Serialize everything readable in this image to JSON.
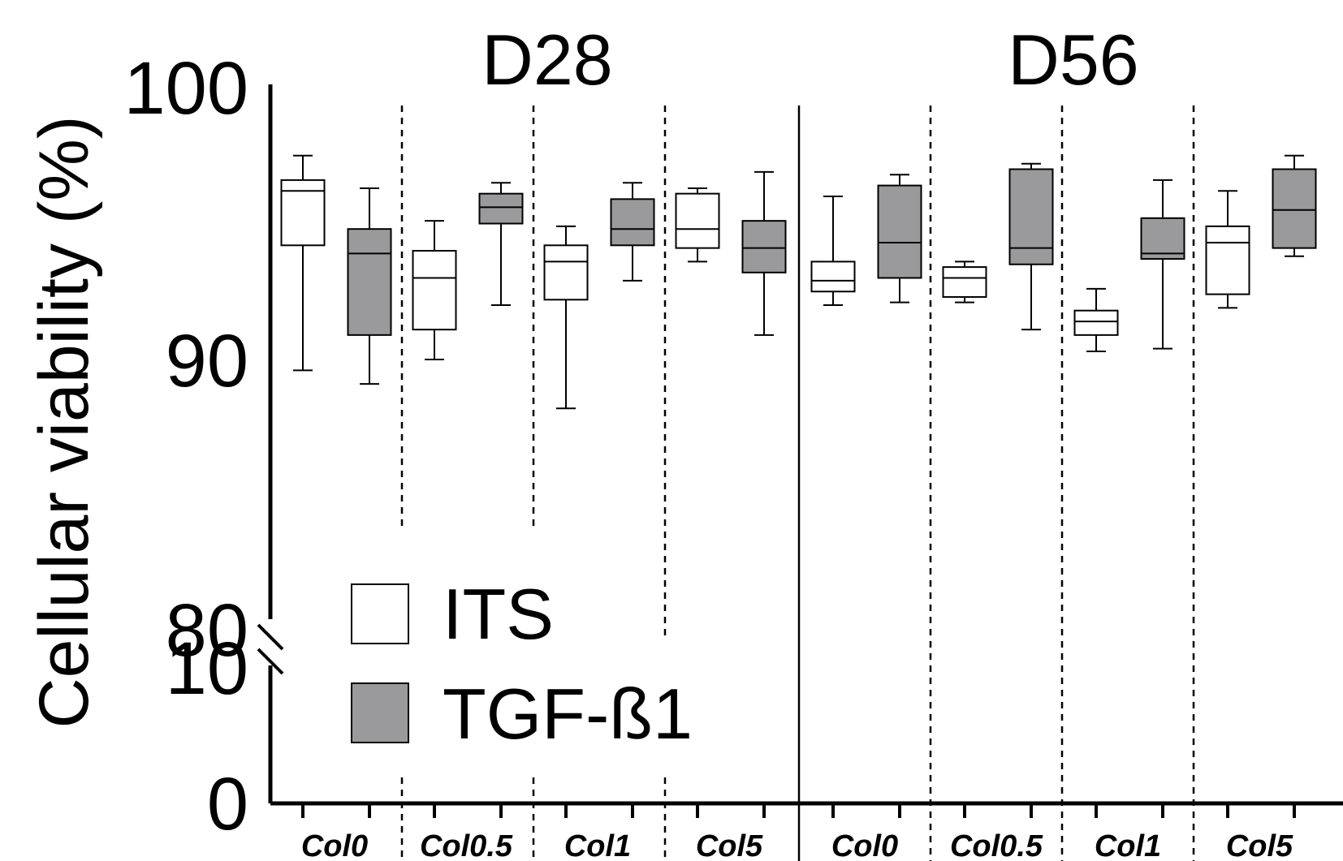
{
  "chart_data": {
    "type": "box",
    "ylabel": "Cellular viability (%)",
    "panels": [
      "D28",
      "D56"
    ],
    "categories": [
      "Col0",
      "Col0.5",
      "Col1",
      "Col5"
    ],
    "y_axis": {
      "broken": true,
      "lower_segment": [
        0,
        10
      ],
      "upper_segment": [
        80,
        100
      ],
      "ticks": [
        "100",
        "90",
        "80",
        "10",
        "0"
      ]
    },
    "legend": {
      "placement": "bottom-left",
      "entries": [
        {
          "label": "ITS",
          "color": "#ffffff"
        },
        {
          "label": "TGF-ß1",
          "color": "#9a9a9c"
        }
      ]
    },
    "series": [
      {
        "name": "ITS",
        "color": "#ffffff",
        "boxes": [
          {
            "panel": "D28",
            "category": "Col0",
            "min": 89.6,
            "q1": 94.2,
            "median": 96.2,
            "q3": 96.6,
            "max": 97.5
          },
          {
            "panel": "D28",
            "category": "Col0.5",
            "min": 90.0,
            "q1": 91.1,
            "median": 93.0,
            "q3": 94.0,
            "max": 95.1
          },
          {
            "panel": "D28",
            "category": "Col1",
            "min": 88.2,
            "q1": 92.2,
            "median": 93.6,
            "q3": 94.2,
            "max": 94.9
          },
          {
            "panel": "D56",
            "category": "Col0",
            "min": 92.0,
            "q1": 92.5,
            "median": 92.9,
            "q3": 93.6,
            "max": 96.0
          },
          {
            "panel": "D56",
            "category": "Col0.5",
            "min": 92.1,
            "q1": 92.3,
            "median": 93.0,
            "q3": 93.4,
            "max": 93.6
          },
          {
            "panel": "D56",
            "category": "Col1",
            "min": 90.3,
            "q1": 90.9,
            "median": 91.4,
            "q3": 91.8,
            "max": 92.6
          },
          {
            "panel": "D56",
            "category": "Col5",
            "min": 91.9,
            "q1": 92.4,
            "median": 94.3,
            "q3": 94.9,
            "max": 96.2
          }
        ]
      },
      {
        "name": "TGF-ß1",
        "color": "#9a9a9c",
        "boxes": [
          {
            "panel": "D28",
            "category": "Col0",
            "min": 89.1,
            "q1": 90.9,
            "median": 93.9,
            "q3": 94.8,
            "max": 96.3
          },
          {
            "panel": "D28",
            "category": "Col0.5",
            "min": 92.0,
            "q1": 95.0,
            "median": 95.6,
            "q3": 96.1,
            "max": 96.5
          },
          {
            "panel": "D28",
            "category": "Col1",
            "min": 92.9,
            "q1": 94.2,
            "median": 94.8,
            "q3": 95.9,
            "max": 96.5
          },
          {
            "panel": "D28",
            "category": "Col5",
            "min": 90.9,
            "q1": 93.2,
            "median": 94.1,
            "q3": 95.1,
            "max": 96.9
          },
          {
            "panel": "D56",
            "category": "Col0",
            "min": 92.1,
            "q1": 93.0,
            "median": 94.3,
            "q3": 96.4,
            "max": 96.8
          },
          {
            "panel": "D56",
            "category": "Col0.5",
            "min": 91.1,
            "q1": 93.5,
            "median": 94.1,
            "q3": 97.0,
            "max": 97.2
          },
          {
            "panel": "D56",
            "category": "Col1",
            "min": 90.4,
            "q1": 93.7,
            "median": 93.9,
            "q3": 95.2,
            "max": 96.6
          },
          {
            "panel": "D56",
            "category": "Col5",
            "min": 93.8,
            "q1": 94.1,
            "median": 95.5,
            "q3": 97.0,
            "max": 97.5
          }
        ]
      },
      {
        "name": "ITS",
        "color": "#ffffff",
        "boxes": [
          {
            "panel": "D28",
            "category": "Col5",
            "min": 93.6,
            "q1": 94.1,
            "median": 94.8,
            "q3": 96.1,
            "max": 96.3
          }
        ]
      }
    ]
  }
}
